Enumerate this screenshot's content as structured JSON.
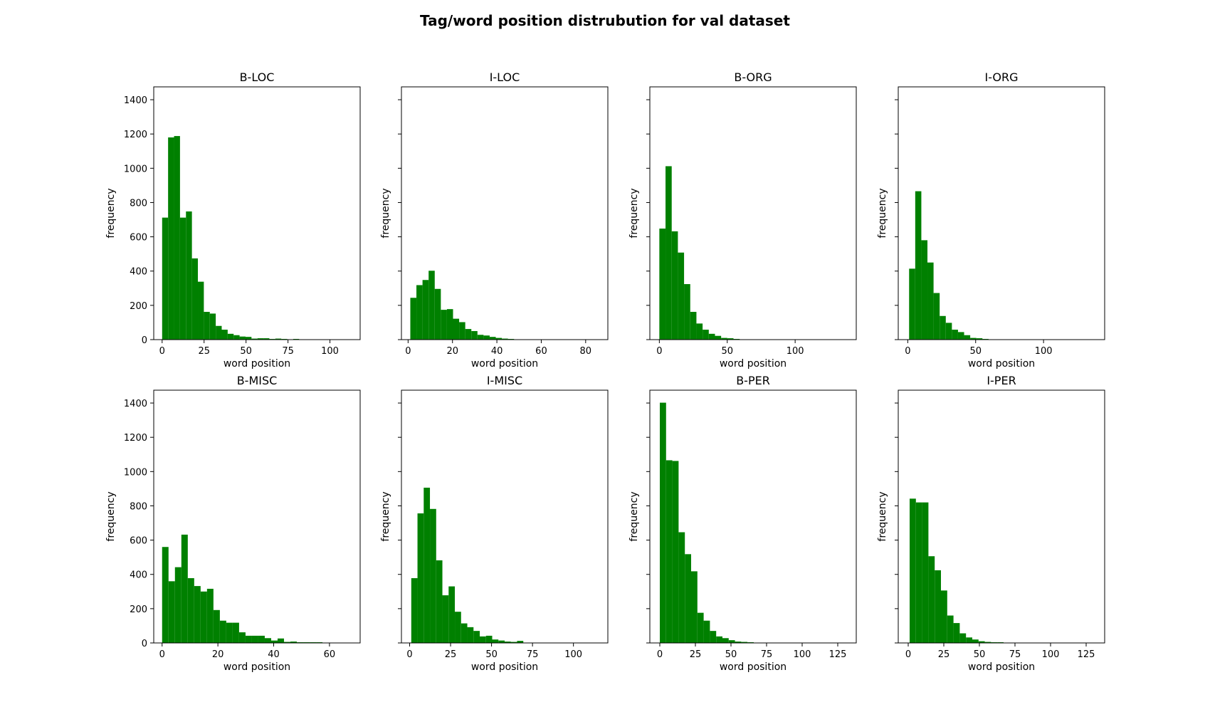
{
  "figure": {
    "title": "Tag/word position distrubution for val dataset",
    "bar_color": "#008000",
    "shared_y_ticks": [
      0,
      200,
      400,
      600,
      800,
      1000,
      1200,
      1400
    ]
  },
  "chart_data": [
    {
      "type": "bar",
      "title": "B-LOC",
      "xlabel": "word position",
      "ylabel": "frequency",
      "xlim": [
        -5,
        118
      ],
      "ylim": [
        0,
        1475
      ],
      "x_ticks": [
        0,
        25,
        50,
        75,
        100
      ],
      "y_ticks": [
        0,
        200,
        400,
        600,
        800,
        1000,
        1200,
        1400
      ],
      "bin_start": 0,
      "bin_width": 3.55,
      "values": [
        712,
        1180,
        1188,
        712,
        748,
        474,
        338,
        162,
        152,
        80,
        58,
        34,
        26,
        18,
        16,
        6,
        8,
        8,
        4,
        6,
        4,
        2,
        4,
        2,
        2,
        2,
        1,
        1,
        0,
        0,
        1
      ]
    },
    {
      "type": "bar",
      "title": "I-LOC",
      "xlabel": "word position",
      "ylabel": "frequency",
      "xlim": [
        -3,
        90
      ],
      "ylim": [
        0,
        1475
      ],
      "x_ticks": [
        0,
        20,
        40,
        60,
        80
      ],
      "y_ticks": [
        0,
        200,
        400,
        600,
        800,
        1000,
        1200,
        1400
      ],
      "bin_start": 1,
      "bin_width": 2.75,
      "values": [
        244,
        318,
        348,
        402,
        296,
        174,
        178,
        122,
        102,
        62,
        50,
        28,
        24,
        16,
        10,
        6,
        4,
        2,
        2,
        2,
        2,
        1,
        1,
        1,
        1,
        0,
        0,
        0,
        0,
        1
      ]
    },
    {
      "type": "bar",
      "title": "B-ORG",
      "xlabel": "word position",
      "ylabel": "frequency",
      "xlim": [
        -7,
        145
      ],
      "ylim": [
        0,
        1475
      ],
      "x_ticks": [
        0,
        50,
        100
      ],
      "y_ticks": [
        0,
        200,
        400,
        600,
        800,
        1000,
        1200,
        1400
      ],
      "bin_start": 0,
      "bin_width": 4.55,
      "values": [
        648,
        1012,
        632,
        508,
        324,
        162,
        94,
        58,
        34,
        22,
        10,
        8,
        4,
        2,
        2,
        1,
        1,
        1,
        0,
        0,
        0,
        0,
        0,
        0,
        0,
        0,
        0,
        0,
        0,
        1
      ]
    },
    {
      "type": "bar",
      "title": "I-ORG",
      "xlabel": "word position",
      "ylabel": "frequency",
      "xlim": [
        -7,
        145
      ],
      "ylim": [
        0,
        1475
      ],
      "x_ticks": [
        0,
        50,
        100
      ],
      "y_ticks": [
        0,
        200,
        400,
        600,
        800,
        1000,
        1200,
        1400
      ],
      "bin_start": 1,
      "bin_width": 4.5,
      "values": [
        414,
        866,
        580,
        450,
        272,
        138,
        98,
        58,
        44,
        26,
        10,
        8,
        4,
        2,
        2,
        1,
        1,
        0,
        0,
        0,
        0,
        0,
        0,
        0,
        0,
        0,
        0,
        0,
        0,
        1
      ]
    },
    {
      "type": "bar",
      "title": "B-MISC",
      "xlabel": "word position",
      "ylabel": "frequency",
      "xlim": [
        -3,
        71
      ],
      "ylim": [
        0,
        1475
      ],
      "x_ticks": [
        0,
        20,
        40,
        60
      ],
      "y_ticks": [
        0,
        200,
        400,
        600,
        800,
        1000,
        1200,
        1400
      ],
      "bin_start": 0,
      "bin_width": 2.3,
      "values": [
        560,
        360,
        442,
        632,
        378,
        332,
        300,
        316,
        192,
        130,
        118,
        118,
        62,
        42,
        42,
        42,
        28,
        14,
        26,
        6,
        8,
        4,
        4,
        4,
        4,
        2,
        2,
        2,
        2,
        2
      ]
    },
    {
      "type": "bar",
      "title": "I-MISC",
      "xlabel": "word position",
      "ylabel": "frequency",
      "xlim": [
        -5,
        121
      ],
      "ylim": [
        0,
        1475
      ],
      "x_ticks": [
        0,
        25,
        50,
        75,
        100
      ],
      "y_ticks": [
        0,
        200,
        400,
        600,
        800,
        1000,
        1200,
        1400
      ],
      "bin_start": 1,
      "bin_width": 3.8,
      "values": [
        378,
        756,
        906,
        782,
        482,
        278,
        330,
        182,
        114,
        92,
        70,
        38,
        42,
        20,
        14,
        8,
        6,
        12,
        2,
        2,
        2,
        0,
        0,
        0,
        0,
        0,
        0,
        0,
        0,
        1
      ]
    },
    {
      "type": "bar",
      "title": "B-PER",
      "xlabel": "word position",
      "ylabel": "frequency",
      "xlim": [
        -7,
        138
      ],
      "ylim": [
        0,
        1475
      ],
      "x_ticks": [
        0,
        25,
        50,
        75,
        100,
        125
      ],
      "y_ticks": [
        0,
        200,
        400,
        600,
        800,
        1000,
        1200,
        1400
      ],
      "bin_start": 0,
      "bin_width": 4.4,
      "values": [
        1402,
        1066,
        1062,
        646,
        518,
        418,
        176,
        130,
        70,
        38,
        28,
        16,
        8,
        6,
        4,
        2,
        2,
        1,
        1,
        1,
        1,
        0,
        0,
        0,
        0,
        0,
        0,
        0,
        0,
        1
      ]
    },
    {
      "type": "bar",
      "title": "I-PER",
      "xlabel": "word position",
      "ylabel": "frequency",
      "xlim": [
        -7,
        138
      ],
      "ylim": [
        0,
        1475
      ],
      "x_ticks": [
        0,
        25,
        50,
        75,
        100,
        125
      ],
      "y_ticks": [
        0,
        200,
        400,
        600,
        800,
        1000,
        1200,
        1400
      ],
      "bin_start": 1,
      "bin_width": 4.4,
      "values": [
        842,
        820,
        820,
        506,
        424,
        306,
        160,
        116,
        56,
        32,
        20,
        10,
        6,
        4,
        4,
        2,
        1,
        1,
        0,
        0,
        0,
        0,
        0,
        0,
        0,
        0,
        0,
        0,
        0,
        1
      ]
    }
  ]
}
